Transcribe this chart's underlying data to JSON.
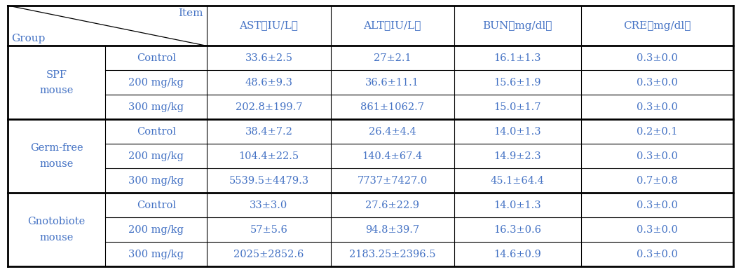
{
  "header_cols": [
    "AST (IU/L)",
    "ALT (IU/L)",
    "BUN（mg/dl）",
    "CRE（mg/dl）"
  ],
  "header_cols_display": [
    "AST（IU/L）",
    "ALT（IU/L）",
    "BUN（mg/dl）",
    "CRE（mg/dl）"
  ],
  "groups": [
    {
      "name": "SPF\nmouse",
      "rows": [
        {
          "item": "Control",
          "ast": "33.6±2.5",
          "alt": "27±2.1",
          "bun": "16.1±1.3",
          "cre": "0.3±0.0"
        },
        {
          "item": "200 mg/kg",
          "ast": "48.6±9.3",
          "alt": "36.6±11.1",
          "bun": "15.6±1.9",
          "cre": "0.3±0.0"
        },
        {
          "item": "300 mg/kg",
          "ast": "202.8±199.7",
          "alt": "861±1062.7",
          "bun": "15.0±1.7",
          "cre": "0.3±0.0"
        }
      ]
    },
    {
      "name": "Germ-free\nmouse",
      "rows": [
        {
          "item": "Control",
          "ast": "38.4±7.2",
          "alt": "26.4±4.4",
          "bun": "14.0±1.3",
          "cre": "0.2±0.1"
        },
        {
          "item": "200 mg/kg",
          "ast": "104.4±22.5",
          "alt": "140.4±67.4",
          "bun": "14.9±2.3",
          "cre": "0.3±0.0"
        },
        {
          "item": "300 mg/kg",
          "ast": "5539.5±4479.3",
          "alt": "7737±7427.0",
          "bun": "45.1±64.4",
          "cre": "0.7±0.8"
        }
      ]
    },
    {
      "name": "Gnotobiote\nmouse",
      "rows": [
        {
          "item": "Control",
          "ast": "33±3.0",
          "alt": "27.6±22.9",
          "bun": "14.0±1.3",
          "cre": "0.3±0.0"
        },
        {
          "item": "200 mg/kg",
          "ast": "57±5.6",
          "alt": "94.8±39.7",
          "bun": "16.3±0.6",
          "cre": "0.3±0.0"
        },
        {
          "item": "300 mg/kg",
          "ast": "2025±2852.6",
          "alt": "2183.25±2396.5",
          "bun": "14.6±0.9",
          "cre": "0.3±0.0"
        }
      ]
    }
  ],
  "blue_color": "#4472C4",
  "black_color": "#000000",
  "bg_color": "#FFFFFF",
  "thick_lw": 2.0,
  "thin_lw": 0.8,
  "font_size": 10.5,
  "header_font_size": 11.0,
  "figsize": [
    10.57,
    3.88
  ],
  "dpi": 100
}
